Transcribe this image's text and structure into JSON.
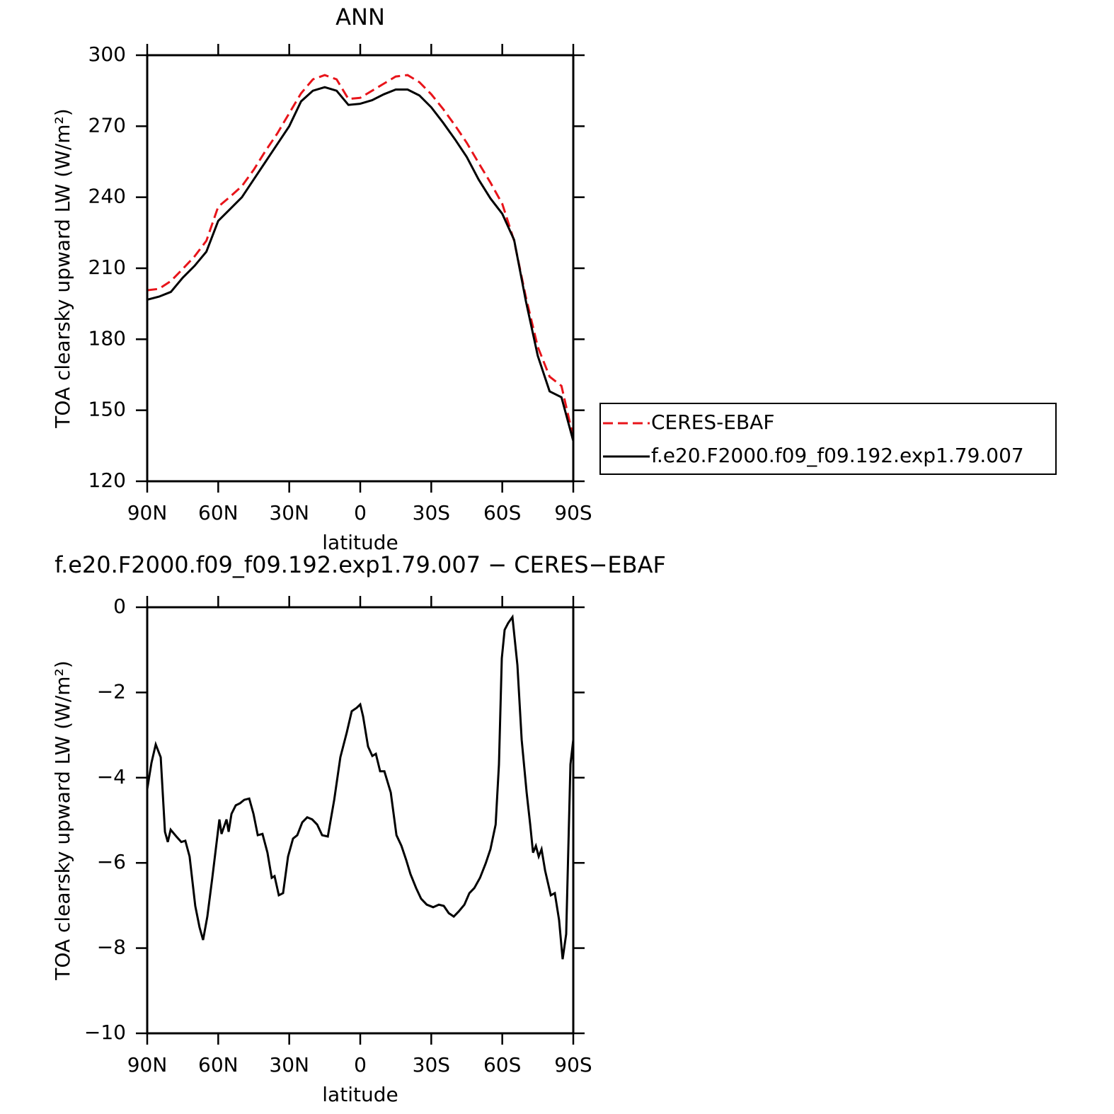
{
  "chart_data": [
    {
      "type": "line",
      "title": "ANN",
      "xlabel": "latitude",
      "ylabel": "TOA clearsky upward LW (W/m²)",
      "x": [
        90,
        85,
        80,
        75,
        70,
        65,
        60,
        55,
        50,
        45,
        40,
        35,
        30,
        25,
        20,
        15,
        10,
        5,
        0,
        -5,
        -10,
        -15,
        -20,
        -25,
        -30,
        -35,
        -40,
        -45,
        -50,
        -55,
        -60,
        -65,
        -70,
        -75,
        -80,
        -85,
        -90
      ],
      "xlim": [
        90,
        -90
      ],
      "xticks": [
        {
          "value": 90,
          "label": "90N"
        },
        {
          "value": 60,
          "label": "60N"
        },
        {
          "value": 30,
          "label": "30N"
        },
        0,
        {
          "value": -30,
          "label": "30S"
        },
        {
          "value": -60,
          "label": "60S"
        },
        {
          "value": -90,
          "label": "90S"
        }
      ],
      "ylim": [
        120,
        300
      ],
      "yticks": [
        120,
        150,
        180,
        210,
        240,
        270,
        300
      ],
      "legend": "outside right",
      "series": [
        {
          "name": "CERES-EBAF",
          "color": "#e8141a",
          "linestyle": "dashed",
          "values": [
            200.7,
            201.3,
            204.6,
            209.7,
            215,
            221.6,
            236,
            240.2,
            244.7,
            251.6,
            259.6,
            267,
            275.5,
            283.9,
            289.8,
            291.6,
            289.8,
            281.5,
            282,
            285,
            288,
            291,
            291.6,
            288.6,
            283.5,
            277.3,
            270.4,
            263,
            254.5,
            246.2,
            237.2,
            221.6,
            197.7,
            176.8,
            164.2,
            160.3,
            138.5
          ]
        },
        {
          "name": "f.e20.F2000.f09_f09.192.exp1.79.007",
          "color": "#000000",
          "linestyle": "solid",
          "values": [
            196.7,
            198,
            200,
            206,
            211,
            217,
            230,
            235,
            240,
            247.5,
            255,
            262.5,
            270,
            280.5,
            285,
            286.5,
            285,
            279,
            279.5,
            281,
            283.5,
            285.5,
            285.5,
            283,
            278,
            271.5,
            264.5,
            257,
            247.5,
            239.5,
            233,
            222,
            196,
            173,
            158,
            155.5,
            137
          ]
        }
      ]
    },
    {
      "type": "line",
      "title": "f.e20.F2000.f09_f09.192.exp1.79.007 − CERES−EBAF",
      "xlabel": "latitude",
      "ylabel": "TOA clearsky upward LW (W/m²)",
      "x": [
        90,
        88.2,
        86.4,
        84.3,
        82.5,
        81.3,
        80.1,
        77.7,
        75.6,
        73.9,
        72.1,
        69.7,
        67.9,
        66.4,
        64.6,
        62.5,
        59.5,
        58.6,
        56.5,
        55.6,
        54.4,
        52.6,
        50.8,
        49,
        46.9,
        45.1,
        43.3,
        41.3,
        39.2,
        37.4,
        36.2,
        34.4,
        32.6,
        30.5,
        28.4,
        26.6,
        24.5,
        22.4,
        20.3,
        18.2,
        16.1,
        13.7,
        11,
        8.4,
        5.7,
        3.6,
        1.5,
        0,
        -1.2,
        -3.3,
        -5.1,
        -6.6,
        -8.4,
        -10.2,
        -12.9,
        -15.3,
        -17.4,
        -19.4,
        -21.2,
        -23.6,
        -25.7,
        -28.1,
        -30.8,
        -33.2,
        -35.3,
        -37.4,
        -39.5,
        -41.6,
        -44,
        -46.1,
        -48.2,
        -50.6,
        -53,
        -55,
        -57.2,
        -58.6,
        -59.8,
        -61,
        -62.5,
        -64.3,
        -66.4,
        -68.2,
        -70.3,
        -71.8,
        -73,
        -74.2,
        -75.4,
        -76.6,
        -78.1,
        -80.5,
        -82.2,
        -84,
        -85.5,
        -87,
        -88.8,
        -90
      ],
      "xlim": [
        90,
        -90
      ],
      "xticks": [
        {
          "value": 90,
          "label": "90N"
        },
        {
          "value": 60,
          "label": "60N"
        },
        {
          "value": 30,
          "label": "30N"
        },
        0,
        {
          "value": -30,
          "label": "30S"
        },
        {
          "value": -60,
          "label": "60S"
        },
        {
          "value": -90,
          "label": "90S"
        }
      ],
      "ylim": [
        -10,
        0
      ],
      "yticks": [
        {
          "value": -10,
          "label": "−10"
        },
        {
          "value": -8,
          "label": "−8"
        },
        {
          "value": -6,
          "label": "−6"
        },
        {
          "value": -4,
          "label": "−4"
        },
        {
          "value": -2,
          "label": "−2"
        },
        0
      ],
      "series": [
        {
          "color": "#000000",
          "linestyle": "solid",
          "values": [
            -4.27,
            -3.65,
            -3.22,
            -3.52,
            -5.27,
            -5.51,
            -5.22,
            -5.38,
            -5.51,
            -5.48,
            -5.85,
            -7.01,
            -7.51,
            -7.81,
            -7.26,
            -6.35,
            -4.98,
            -5.32,
            -4.98,
            -5.27,
            -4.85,
            -4.65,
            -4.6,
            -4.52,
            -4.49,
            -4.85,
            -5.35,
            -5.32,
            -5.76,
            -6.35,
            -6.31,
            -6.76,
            -6.71,
            -5.85,
            -5.43,
            -5.35,
            -5.05,
            -4.93,
            -4.98,
            -5.1,
            -5.35,
            -5.38,
            -4.52,
            -3.52,
            -2.94,
            -2.44,
            -2.36,
            -2.28,
            -2.56,
            -3.27,
            -3.49,
            -3.44,
            -3.85,
            -3.85,
            -4.35,
            -5.35,
            -5.6,
            -5.93,
            -6.26,
            -6.59,
            -6.84,
            -6.98,
            -7.04,
            -6.98,
            -7.01,
            -7.18,
            -7.26,
            -7.14,
            -6.98,
            -6.71,
            -6.59,
            -6.35,
            -6.01,
            -5.68,
            -5.1,
            -3.69,
            -1.2,
            -0.53,
            -0.37,
            -0.23,
            -1.36,
            -3.11,
            -4.35,
            -5.1,
            -5.76,
            -5.6,
            -5.85,
            -5.68,
            -6.18,
            -6.76,
            -6.71,
            -7.34,
            -8.26,
            -7.67,
            -3.69,
            -3.11
          ]
        }
      ]
    }
  ]
}
